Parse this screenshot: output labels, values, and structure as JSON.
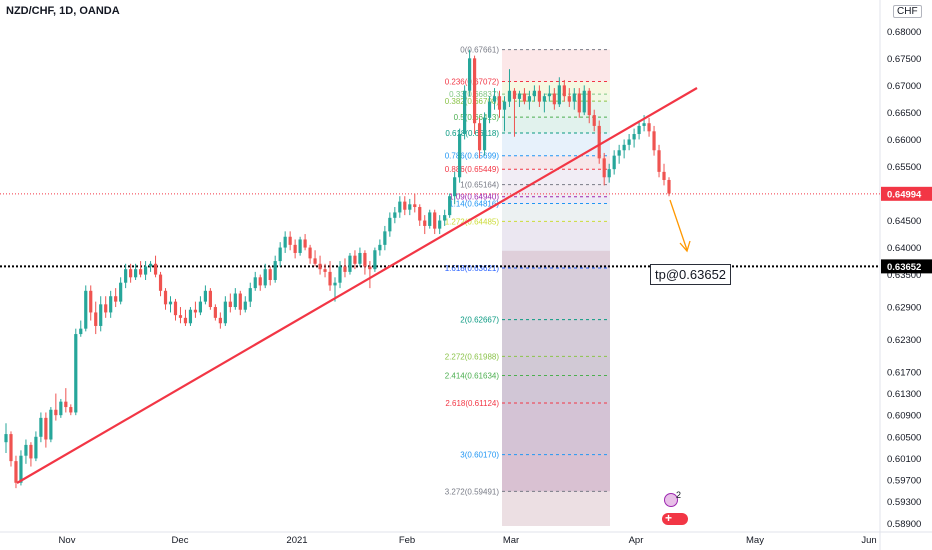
{
  "symbol_title": "NZD/CHF, 1D, OANDA",
  "currency_label": "CHF",
  "target_label": "tp@0.63652",
  "badge_count": "2",
  "colors": {
    "up": "#26a69a",
    "down": "#ef5350",
    "trendline": "#f23645",
    "current_price_bg": "#f23645",
    "target_price_bg": "#000000",
    "arrow": "#ff9800"
  },
  "chart_data": {
    "type": "candlestick",
    "title": "NZD/CHF, 1D, OANDA",
    "y_axis": {
      "ticks": [
        "0.68000",
        "0.67500",
        "0.67000",
        "0.66500",
        "0.66000",
        "0.65500",
        "0.65000",
        "0.64500",
        "0.64000",
        "0.63500",
        "0.62900",
        "0.62300",
        "0.61700",
        "0.61300",
        "0.60900",
        "0.60500",
        "0.60100",
        "0.59700",
        "0.59300",
        "0.58900"
      ],
      "range": [
        0.5885,
        0.6832
      ]
    },
    "x_axis": {
      "ticks": [
        "Nov",
        "Dec",
        "2021",
        "Feb",
        "Mar",
        "Apr",
        "May",
        "Jun"
      ]
    },
    "price_markers": [
      {
        "label": "0.64994",
        "value": 0.64994,
        "style": "current"
      },
      {
        "label": "0.63652",
        "value": 0.63652,
        "style": "target"
      }
    ],
    "fib_levels": [
      {
        "label": "0(0.67661)",
        "value": 0.67661,
        "color": "#787b86"
      },
      {
        "label": "0.236(0.67072)",
        "value": 0.67072,
        "color": "#f23645"
      },
      {
        "label": "0.33(0.66837)",
        "value": 0.66837,
        "color": "#81c784"
      },
      {
        "label": "0.382(0.66708)",
        "value": 0.66708,
        "color": "#8bc34a"
      },
      {
        "label": "0.5(0.66413)",
        "value": 0.66413,
        "color": "#4caf50"
      },
      {
        "label": "0.618(0.66118)",
        "value": 0.66118,
        "color": "#089981"
      },
      {
        "label": "0.786(0.65699)",
        "value": 0.65699,
        "color": "#2196f3"
      },
      {
        "label": "0.886(0.65449)",
        "value": 0.65449,
        "color": "#f23645"
      },
      {
        "label": "1(0.65164)",
        "value": 0.65164,
        "color": "#787b86"
      },
      {
        "label": "1.09(0.64940)",
        "value": 0.6494,
        "color": "#9c27b0"
      },
      {
        "label": "1.14(0.64816)",
        "value": 0.64816,
        "color": "#2196f3"
      },
      {
        "label": "1.272(0.64485)",
        "value": 0.64485,
        "color": "#cddc39"
      },
      {
        "label": "1.618(0.63621)",
        "value": 0.63621,
        "color": "#2962ff"
      },
      {
        "label": "2(0.62667)",
        "value": 0.62667,
        "color": "#089981"
      },
      {
        "label": "2.272(0.61988)",
        "value": 0.61988,
        "color": "#8bc34a"
      },
      {
        "label": "2.414(0.61634)",
        "value": 0.61634,
        "color": "#4caf50"
      },
      {
        "label": "2.618(0.61124)",
        "value": 0.61124,
        "color": "#f23645"
      },
      {
        "label": "3(0.60170)",
        "value": 0.6017,
        "color": "#2196f3"
      },
      {
        "label": "3.272(0.59491)",
        "value": 0.59491,
        "color": "#787b86"
      }
    ],
    "candles": [
      {
        "o": 0.604,
        "h": 0.6075,
        "l": 0.602,
        "c": 0.6055
      },
      {
        "o": 0.6055,
        "h": 0.606,
        "l": 0.5995,
        "c": 0.6005
      },
      {
        "o": 0.6005,
        "h": 0.6015,
        "l": 0.5955,
        "c": 0.5965
      },
      {
        "o": 0.5965,
        "h": 0.6025,
        "l": 0.596,
        "c": 0.6015
      },
      {
        "o": 0.6015,
        "h": 0.6045,
        "l": 0.6,
        "c": 0.6035
      },
      {
        "o": 0.6035,
        "h": 0.604,
        "l": 0.5995,
        "c": 0.601
      },
      {
        "o": 0.601,
        "h": 0.606,
        "l": 0.6005,
        "c": 0.605
      },
      {
        "o": 0.605,
        "h": 0.6095,
        "l": 0.604,
        "c": 0.6085
      },
      {
        "o": 0.6085,
        "h": 0.6095,
        "l": 0.603,
        "c": 0.6045
      },
      {
        "o": 0.6045,
        "h": 0.6105,
        "l": 0.604,
        "c": 0.61
      },
      {
        "o": 0.61,
        "h": 0.613,
        "l": 0.608,
        "c": 0.609
      },
      {
        "o": 0.609,
        "h": 0.612,
        "l": 0.6085,
        "c": 0.6115
      },
      {
        "o": 0.6115,
        "h": 0.614,
        "l": 0.6095,
        "c": 0.6105
      },
      {
        "o": 0.6105,
        "h": 0.611,
        "l": 0.609,
        "c": 0.6095
      },
      {
        "o": 0.6095,
        "h": 0.625,
        "l": 0.609,
        "c": 0.624
      },
      {
        "o": 0.624,
        "h": 0.6265,
        "l": 0.6235,
        "c": 0.625
      },
      {
        "o": 0.625,
        "h": 0.633,
        "l": 0.6245,
        "c": 0.632
      },
      {
        "o": 0.632,
        "h": 0.633,
        "l": 0.6265,
        "c": 0.628
      },
      {
        "o": 0.628,
        "h": 0.63,
        "l": 0.624,
        "c": 0.6255
      },
      {
        "o": 0.6255,
        "h": 0.631,
        "l": 0.6245,
        "c": 0.6295
      },
      {
        "o": 0.6295,
        "h": 0.631,
        "l": 0.627,
        "c": 0.628
      },
      {
        "o": 0.628,
        "h": 0.632,
        "l": 0.627,
        "c": 0.631
      },
      {
        "o": 0.631,
        "h": 0.6325,
        "l": 0.629,
        "c": 0.63
      },
      {
        "o": 0.63,
        "h": 0.6345,
        "l": 0.6295,
        "c": 0.6335
      },
      {
        "o": 0.6335,
        "h": 0.637,
        "l": 0.6325,
        "c": 0.636
      },
      {
        "o": 0.636,
        "h": 0.637,
        "l": 0.6335,
        "c": 0.6345
      },
      {
        "o": 0.6345,
        "h": 0.637,
        "l": 0.634,
        "c": 0.636
      },
      {
        "o": 0.636,
        "h": 0.6375,
        "l": 0.6345,
        "c": 0.635
      },
      {
        "o": 0.635,
        "h": 0.6375,
        "l": 0.634,
        "c": 0.6365
      },
      {
        "o": 0.6365,
        "h": 0.6375,
        "l": 0.6355,
        "c": 0.637
      },
      {
        "o": 0.637,
        "h": 0.6385,
        "l": 0.6345,
        "c": 0.635
      },
      {
        "o": 0.635,
        "h": 0.6355,
        "l": 0.631,
        "c": 0.632
      },
      {
        "o": 0.632,
        "h": 0.6325,
        "l": 0.6285,
        "c": 0.6295
      },
      {
        "o": 0.6295,
        "h": 0.631,
        "l": 0.628,
        "c": 0.63
      },
      {
        "o": 0.63,
        "h": 0.6305,
        "l": 0.6265,
        "c": 0.6275
      },
      {
        "o": 0.6275,
        "h": 0.629,
        "l": 0.626,
        "c": 0.627
      },
      {
        "o": 0.627,
        "h": 0.6285,
        "l": 0.6255,
        "c": 0.626
      },
      {
        "o": 0.626,
        "h": 0.629,
        "l": 0.6255,
        "c": 0.6285
      },
      {
        "o": 0.6285,
        "h": 0.63,
        "l": 0.627,
        "c": 0.628
      },
      {
        "o": 0.628,
        "h": 0.631,
        "l": 0.6275,
        "c": 0.63
      },
      {
        "o": 0.63,
        "h": 0.633,
        "l": 0.6295,
        "c": 0.632
      },
      {
        "o": 0.632,
        "h": 0.6325,
        "l": 0.6285,
        "c": 0.629
      },
      {
        "o": 0.629,
        "h": 0.6295,
        "l": 0.6265,
        "c": 0.627
      },
      {
        "o": 0.627,
        "h": 0.628,
        "l": 0.625,
        "c": 0.626
      },
      {
        "o": 0.626,
        "h": 0.631,
        "l": 0.6255,
        "c": 0.63
      },
      {
        "o": 0.63,
        "h": 0.6315,
        "l": 0.628,
        "c": 0.629
      },
      {
        "o": 0.629,
        "h": 0.6325,
        "l": 0.6285,
        "c": 0.6315
      },
      {
        "o": 0.6315,
        "h": 0.632,
        "l": 0.6275,
        "c": 0.6285
      },
      {
        "o": 0.6285,
        "h": 0.631,
        "l": 0.628,
        "c": 0.63
      },
      {
        "o": 0.63,
        "h": 0.6335,
        "l": 0.629,
        "c": 0.6325
      },
      {
        "o": 0.6325,
        "h": 0.6355,
        "l": 0.632,
        "c": 0.6345
      },
      {
        "o": 0.6345,
        "h": 0.635,
        "l": 0.632,
        "c": 0.633
      },
      {
        "o": 0.633,
        "h": 0.637,
        "l": 0.6325,
        "c": 0.636
      },
      {
        "o": 0.636,
        "h": 0.6365,
        "l": 0.633,
        "c": 0.634
      },
      {
        "o": 0.634,
        "h": 0.6385,
        "l": 0.6335,
        "c": 0.6375
      },
      {
        "o": 0.6375,
        "h": 0.641,
        "l": 0.6365,
        "c": 0.64
      },
      {
        "o": 0.64,
        "h": 0.643,
        "l": 0.639,
        "c": 0.642
      },
      {
        "o": 0.642,
        "h": 0.643,
        "l": 0.6395,
        "c": 0.6405
      },
      {
        "o": 0.6405,
        "h": 0.6415,
        "l": 0.638,
        "c": 0.639
      },
      {
        "o": 0.639,
        "h": 0.642,
        "l": 0.6385,
        "c": 0.6415
      },
      {
        "o": 0.6415,
        "h": 0.6425,
        "l": 0.6395,
        "c": 0.64
      },
      {
        "o": 0.64,
        "h": 0.6405,
        "l": 0.637,
        "c": 0.638
      },
      {
        "o": 0.638,
        "h": 0.6395,
        "l": 0.6365,
        "c": 0.637
      },
      {
        "o": 0.637,
        "h": 0.6385,
        "l": 0.635,
        "c": 0.636
      },
      {
        "o": 0.636,
        "h": 0.637,
        "l": 0.6345,
        "c": 0.6355
      },
      {
        "o": 0.6355,
        "h": 0.6375,
        "l": 0.632,
        "c": 0.633
      },
      {
        "o": 0.633,
        "h": 0.6345,
        "l": 0.63,
        "c": 0.6335
      },
      {
        "o": 0.6335,
        "h": 0.6375,
        "l": 0.6325,
        "c": 0.6365
      },
      {
        "o": 0.6365,
        "h": 0.638,
        "l": 0.6345,
        "c": 0.6355
      },
      {
        "o": 0.6355,
        "h": 0.639,
        "l": 0.635,
        "c": 0.6385
      },
      {
        "o": 0.6385,
        "h": 0.6395,
        "l": 0.636,
        "c": 0.637
      },
      {
        "o": 0.637,
        "h": 0.64,
        "l": 0.6365,
        "c": 0.639
      },
      {
        "o": 0.639,
        "h": 0.6395,
        "l": 0.635,
        "c": 0.6365
      },
      {
        "o": 0.6365,
        "h": 0.6375,
        "l": 0.6325,
        "c": 0.636
      },
      {
        "o": 0.636,
        "h": 0.64,
        "l": 0.6355,
        "c": 0.6395
      },
      {
        "o": 0.6395,
        "h": 0.6415,
        "l": 0.6385,
        "c": 0.6405
      },
      {
        "o": 0.6405,
        "h": 0.644,
        "l": 0.6395,
        "c": 0.643
      },
      {
        "o": 0.643,
        "h": 0.6465,
        "l": 0.642,
        "c": 0.6455
      },
      {
        "o": 0.6455,
        "h": 0.6475,
        "l": 0.6445,
        "c": 0.6465
      },
      {
        "o": 0.6465,
        "h": 0.6495,
        "l": 0.6455,
        "c": 0.6485
      },
      {
        "o": 0.6485,
        "h": 0.6495,
        "l": 0.646,
        "c": 0.647
      },
      {
        "o": 0.647,
        "h": 0.649,
        "l": 0.646,
        "c": 0.648
      },
      {
        "o": 0.648,
        "h": 0.65,
        "l": 0.6465,
        "c": 0.6475
      },
      {
        "o": 0.6475,
        "h": 0.648,
        "l": 0.644,
        "c": 0.645
      },
      {
        "o": 0.645,
        "h": 0.646,
        "l": 0.6425,
        "c": 0.644
      },
      {
        "o": 0.644,
        "h": 0.647,
        "l": 0.6435,
        "c": 0.6465
      },
      {
        "o": 0.6465,
        "h": 0.647,
        "l": 0.6425,
        "c": 0.6435
      },
      {
        "o": 0.6435,
        "h": 0.646,
        "l": 0.6425,
        "c": 0.645
      },
      {
        "o": 0.645,
        "h": 0.647,
        "l": 0.644,
        "c": 0.646
      },
      {
        "o": 0.646,
        "h": 0.65,
        "l": 0.6455,
        "c": 0.6495
      },
      {
        "o": 0.6495,
        "h": 0.654,
        "l": 0.648,
        "c": 0.653
      },
      {
        "o": 0.653,
        "h": 0.662,
        "l": 0.652,
        "c": 0.661
      },
      {
        "o": 0.661,
        "h": 0.67,
        "l": 0.66,
        "c": 0.669
      },
      {
        "o": 0.669,
        "h": 0.6766,
        "l": 0.668,
        "c": 0.675
      },
      {
        "o": 0.675,
        "h": 0.6755,
        "l": 0.661,
        "c": 0.663
      },
      {
        "o": 0.663,
        "h": 0.664,
        "l": 0.6565,
        "c": 0.658
      },
      {
        "o": 0.658,
        "h": 0.665,
        "l": 0.657,
        "c": 0.664
      },
      {
        "o": 0.664,
        "h": 0.668,
        "l": 0.663,
        "c": 0.667
      },
      {
        "o": 0.667,
        "h": 0.6695,
        "l": 0.6655,
        "c": 0.668
      },
      {
        "o": 0.668,
        "h": 0.669,
        "l": 0.664,
        "c": 0.6655
      },
      {
        "o": 0.6655,
        "h": 0.668,
        "l": 0.6615,
        "c": 0.667
      },
      {
        "o": 0.667,
        "h": 0.673,
        "l": 0.666,
        "c": 0.669
      },
      {
        "o": 0.669,
        "h": 0.6695,
        "l": 0.6605,
        "c": 0.6675
      },
      {
        "o": 0.6675,
        "h": 0.669,
        "l": 0.666,
        "c": 0.6685
      },
      {
        "o": 0.6685,
        "h": 0.6695,
        "l": 0.6665,
        "c": 0.667
      },
      {
        "o": 0.667,
        "h": 0.669,
        "l": 0.6655,
        "c": 0.668
      },
      {
        "o": 0.668,
        "h": 0.67,
        "l": 0.667,
        "c": 0.669
      },
      {
        "o": 0.669,
        "h": 0.67,
        "l": 0.666,
        "c": 0.667
      },
      {
        "o": 0.667,
        "h": 0.6685,
        "l": 0.665,
        "c": 0.668
      },
      {
        "o": 0.668,
        "h": 0.67,
        "l": 0.667,
        "c": 0.6685
      },
      {
        "o": 0.6685,
        "h": 0.6695,
        "l": 0.6655,
        "c": 0.6665
      },
      {
        "o": 0.6665,
        "h": 0.6715,
        "l": 0.666,
        "c": 0.67
      },
      {
        "o": 0.67,
        "h": 0.671,
        "l": 0.667,
        "c": 0.668
      },
      {
        "o": 0.668,
        "h": 0.6695,
        "l": 0.666,
        "c": 0.667
      },
      {
        "o": 0.667,
        "h": 0.6695,
        "l": 0.6655,
        "c": 0.6685
      },
      {
        "o": 0.6685,
        "h": 0.6695,
        "l": 0.664,
        "c": 0.665
      },
      {
        "o": 0.665,
        "h": 0.67,
        "l": 0.6645,
        "c": 0.669
      },
      {
        "o": 0.669,
        "h": 0.6695,
        "l": 0.663,
        "c": 0.6645
      },
      {
        "o": 0.6645,
        "h": 0.6655,
        "l": 0.6615,
        "c": 0.6625
      },
      {
        "o": 0.6625,
        "h": 0.6635,
        "l": 0.6555,
        "c": 0.6565
      },
      {
        "o": 0.6565,
        "h": 0.6575,
        "l": 0.6515,
        "c": 0.653
      },
      {
        "o": 0.653,
        "h": 0.6555,
        "l": 0.652,
        "c": 0.6545
      },
      {
        "o": 0.6545,
        "h": 0.658,
        "l": 0.6535,
        "c": 0.657
      },
      {
        "o": 0.657,
        "h": 0.659,
        "l": 0.6555,
        "c": 0.658
      },
      {
        "o": 0.658,
        "h": 0.66,
        "l": 0.6565,
        "c": 0.659
      },
      {
        "o": 0.659,
        "h": 0.661,
        "l": 0.658,
        "c": 0.66
      },
      {
        "o": 0.66,
        "h": 0.662,
        "l": 0.6585,
        "c": 0.661
      },
      {
        "o": 0.661,
        "h": 0.6635,
        "l": 0.66,
        "c": 0.6625
      },
      {
        "o": 0.6625,
        "h": 0.6645,
        "l": 0.6615,
        "c": 0.663
      },
      {
        "o": 0.663,
        "h": 0.664,
        "l": 0.6605,
        "c": 0.6615
      },
      {
        "o": 0.6615,
        "h": 0.6625,
        "l": 0.657,
        "c": 0.658
      },
      {
        "o": 0.658,
        "h": 0.659,
        "l": 0.653,
        "c": 0.654
      },
      {
        "o": 0.654,
        "h": 0.6555,
        "l": 0.6515,
        "c": 0.6525
      },
      {
        "o": 0.6525,
        "h": 0.653,
        "l": 0.6495,
        "c": 0.65
      }
    ]
  }
}
